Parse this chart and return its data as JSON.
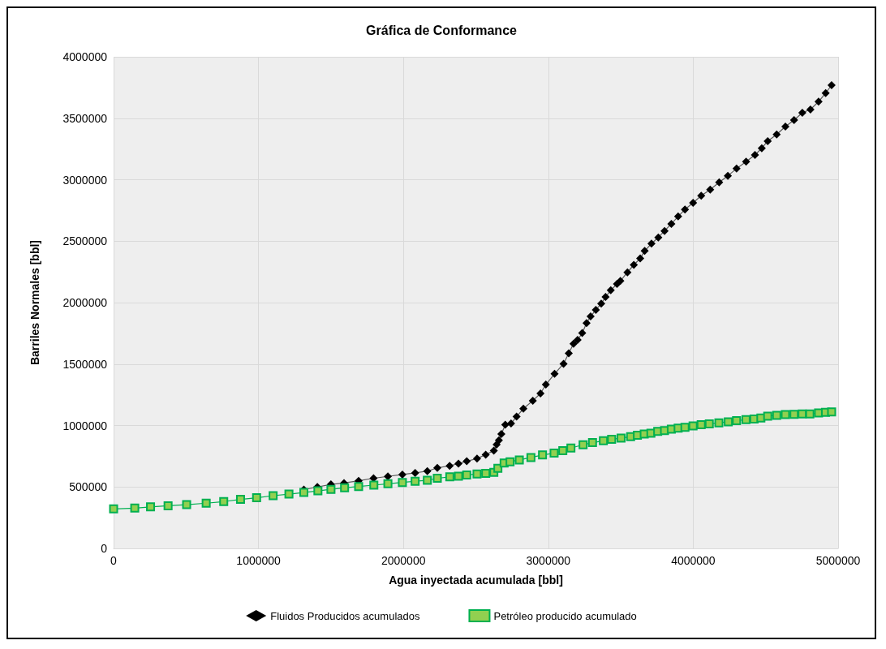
{
  "chart_data": {
    "type": "line",
    "title": "Gráfica de Conformance",
    "xlabel": "Agua inyectada acumulada [bbl]",
    "ylabel": "Barriles Normales [bbl]",
    "xlim": [
      0,
      5000000
    ],
    "xticks": [
      0,
      1000000,
      2000000,
      3000000,
      4000000,
      5000000
    ],
    "ylim": [
      0,
      4000000
    ],
    "yticks": [
      0,
      500000,
      1000000,
      1500000,
      2000000,
      2500000,
      3000000,
      3500000,
      4000000
    ],
    "grid": true,
    "legend": "bottom",
    "line_style": "solid",
    "series": [
      {
        "name": "Fluidos Producidos acumulados",
        "color": "#000000",
        "marker": "diamond",
        "x": [
          1313000,
          1406000,
          1500000,
          1590000,
          1691000,
          1794000,
          1893000,
          1993000,
          2081000,
          2165000,
          2234000,
          2319000,
          2380000,
          2437000,
          2508000,
          2568000,
          2624000,
          2643000,
          2659000,
          2676000,
          2703000,
          2743000,
          2781000,
          2828000,
          2893000,
          2946000,
          2983000,
          3043000,
          3105000,
          3141000,
          3174000,
          3202000,
          3234000,
          3264000,
          3292000,
          3328000,
          3365000,
          3395000,
          3431000,
          3474000,
          3497000,
          3546000,
          3590000,
          3634000,
          3665000,
          3712000,
          3759000,
          3802000,
          3849000,
          3896000,
          3943000,
          3999000,
          4055000,
          4117000,
          4179000,
          4239000,
          4299000,
          4365000,
          4426000,
          4473000,
          4514000,
          4576000,
          4636000,
          4696000,
          4753000,
          4809000,
          4865000,
          4914000,
          4955000
        ],
        "values": [
          478000,
          500000,
          521000,
          532000,
          550000,
          571000,
          586000,
          601000,
          614000,
          629000,
          655000,
          672000,
          690000,
          709000,
          731000,
          763000,
          795000,
          845000,
          880000,
          931000,
          1006000,
          1017000,
          1072000,
          1137000,
          1202000,
          1261000,
          1333000,
          1420000,
          1502000,
          1587000,
          1665000,
          1696000,
          1752000,
          1833000,
          1887000,
          1941000,
          1991000,
          2046000,
          2100000,
          2152000,
          2176000,
          2246000,
          2307000,
          2359000,
          2420000,
          2480000,
          2530000,
          2583000,
          2641000,
          2701000,
          2758000,
          2812000,
          2870000,
          2919000,
          2979000,
          3032000,
          3090000,
          3147000,
          3201000,
          3256000,
          3314000,
          3368000,
          3432000,
          3485000,
          3545000,
          3571000,
          3635000,
          3705000,
          3769000
        ]
      },
      {
        "name": "Petróleo producido acumulado",
        "color": "#00b050",
        "marker": "square",
        "x": [
          0,
          146000,
          255000,
          376000,
          504000,
          639000,
          760000,
          876000,
          987000,
          1101000,
          1210000,
          1313000,
          1410000,
          1500000,
          1594000,
          1691000,
          1796000,
          1893000,
          1993000,
          2081000,
          2165000,
          2234000,
          2320000,
          2380000,
          2437000,
          2508000,
          2568000,
          2624000,
          2652000,
          2695000,
          2736000,
          2800000,
          2880000,
          2960000,
          3040000,
          3100000,
          3156000,
          3240000,
          3305000,
          3380000,
          3437000,
          3502000,
          3568000,
          3615000,
          3662000,
          3708000,
          3755000,
          3802000,
          3849000,
          3896000,
          3943000,
          3999000,
          4055000,
          4111000,
          4177000,
          4242000,
          4299000,
          4364000,
          4420000,
          4467000,
          4514000,
          4576000,
          4636000,
          4696000,
          4752000,
          4805000,
          4865000,
          4913000,
          4955000
        ],
        "values": [
          321000,
          328000,
          338000,
          347000,
          356000,
          368000,
          381000,
          399000,
          412000,
          429000,
          442000,
          455000,
          468000,
          481000,
          493000,
          504000,
          515000,
          526000,
          537000,
          547000,
          554000,
          571000,
          582000,
          588000,
          597000,
          606000,
          610000,
          619000,
          651000,
          694000,
          705000,
          720000,
          740000,
          760000,
          775000,
          795000,
          817000,
          843000,
          861000,
          876000,
          887000,
          898000,
          909000,
          920000,
          930000,
          937000,
          952000,
          959000,
          970000,
          978000,
          985000,
          996000,
          1007000,
          1013000,
          1022000,
          1030000,
          1039000,
          1048000,
          1052000,
          1061000,
          1076000,
          1083000,
          1089000,
          1091000,
          1094000,
          1094000,
          1102000,
          1107000,
          1111000
        ]
      }
    ]
  }
}
